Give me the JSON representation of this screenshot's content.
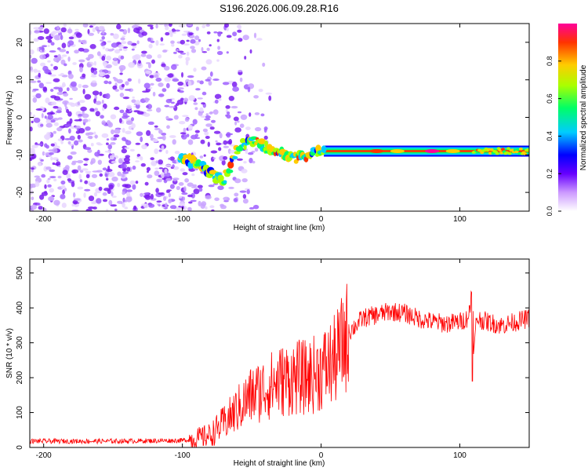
{
  "chart_data": [
    {
      "type": "heatmap",
      "title": "S196.2026.006.09.28.R16",
      "xlabel": "Height of straight line (km)",
      "ylabel": "Frequency (Hz)",
      "xlim": [
        -210,
        150
      ],
      "ylim": [
        -25,
        25
      ],
      "xticks": [
        -200,
        -100,
        0,
        100
      ],
      "yticks": [
        -20,
        -10,
        0,
        10,
        20
      ],
      "colorbar": {
        "label": "Normalized spectral amplitude",
        "range": [
          0,
          1
        ],
        "ticks": [
          "0.0",
          "0.2",
          "0.4",
          "0.6",
          "0.8"
        ]
      },
      "carrier_ridge": {
        "height_km": [
          -100,
          -90,
          -80,
          -70,
          -60,
          -50,
          -40,
          -30,
          -20,
          -10,
          0,
          20,
          50,
          80,
          100,
          110,
          150
        ],
        "frequency_hz": [
          -11,
          -12,
          -15,
          -17,
          -8,
          -6,
          -8,
          -9,
          -11,
          -10,
          -9,
          -9,
          -9,
          -8.5,
          -9.5,
          -9,
          -9
        ]
      }
    },
    {
      "type": "line",
      "xlabel": "Height of straight line (km)",
      "ylabel": "SNR (10 * v/v)",
      "xlim": [
        -210,
        150
      ],
      "ylim": [
        0,
        540
      ],
      "xticks": [
        -200,
        -100,
        0,
        100
      ],
      "yticks": [
        0,
        100,
        200,
        300,
        400,
        500
      ],
      "color": "#ff0000",
      "series": [
        {
          "name": "SNR",
          "x": [
            -210,
            -150,
            -100,
            -90,
            -80,
            -70,
            -60,
            -50,
            -40,
            -30,
            -20,
            -10,
            0,
            10,
            20,
            30,
            40,
            50,
            60,
            70,
            80,
            90,
            100,
            105,
            108,
            110,
            112,
            120,
            130,
            140,
            150
          ],
          "values": [
            18,
            18,
            20,
            25,
            35,
            70,
            110,
            150,
            170,
            190,
            200,
            200,
            220,
            250,
            330,
            370,
            380,
            390,
            385,
            370,
            360,
            355,
            360,
            370,
            400,
            260,
            370,
            360,
            350,
            360,
            370
          ]
        }
      ]
    }
  ]
}
